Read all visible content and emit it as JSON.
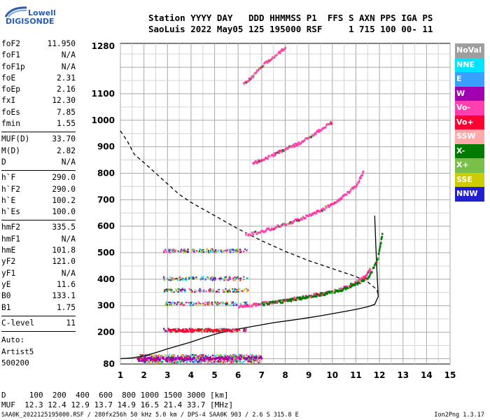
{
  "logo": {
    "line1": "Lowell",
    "line2": "DIGISONDE"
  },
  "header": {
    "line1": "Station YYYY DAY   DDD HHMMSS P1  FFS S AXN PPS IGA PS",
    "line2": "SaoLuis 2022 May05 125 195000 RSF     1 715 100 00- 11"
  },
  "params_groups": [
    [
      [
        "foF2",
        "11.950"
      ],
      [
        "foF1",
        "N/A"
      ],
      [
        "foF1p",
        "N/A"
      ],
      [
        "foE",
        "2.31"
      ],
      [
        "foEp",
        "2.16"
      ],
      [
        "fxI",
        "12.30"
      ],
      [
        "foEs",
        "7.85"
      ],
      [
        "fmin",
        "1.55"
      ]
    ],
    [
      [
        "MUF(D)",
        "33.70"
      ],
      [
        "M(D)",
        "2.82"
      ],
      [
        "D",
        "N/A"
      ]
    ],
    [
      [
        "h`F",
        "290.0"
      ],
      [
        "h`F2",
        "290.0"
      ],
      [
        "h`E",
        "100.2"
      ],
      [
        "h`Es",
        "100.0"
      ]
    ],
    [
      [
        "hmF2",
        "335.5"
      ],
      [
        "hmF1",
        "N/A"
      ],
      [
        "hmE",
        "101.8"
      ],
      [
        "yF2",
        "121.0"
      ],
      [
        "yF1",
        "N/A"
      ],
      [
        "yE",
        "11.6"
      ],
      [
        "B0",
        "133.1"
      ],
      [
        "B1",
        "1.75"
      ]
    ],
    [
      [
        "C-level",
        "11"
      ]
    ]
  ],
  "auto": {
    "l1": "Auto:",
    "l2": "Artist5",
    "l3": "500200"
  },
  "footer": {
    "line1": "D     100  200  400  600  800 1000 1500 3000 [km]",
    "line2": "MUF  12.3 12.4 12.9 13.7 14.9 16.5 21.4 33.7 [MHz]"
  },
  "fileline": "SAA0K_2022125195000.RSF / 280fx256h 50 kHz 5.0 km / DPS-4 SAA0K 903 / 2.6 S 315.8 E",
  "version": "Ion2Png 1.3.17",
  "legend": [
    {
      "label": "NoVal",
      "color": "#9e9e9e"
    },
    {
      "label": "NNE",
      "color": "#00e5ff"
    },
    {
      "label": "E",
      "color": "#3aa0ff"
    },
    {
      "label": "W",
      "color": "#a000b0"
    },
    {
      "label": "Vo-",
      "color": "#ff3fb0"
    },
    {
      "label": "Vo+",
      "color": "#ff0033"
    },
    {
      "label": "SSW",
      "color": "#ffaaaa"
    },
    {
      "label": "X-",
      "color": "#007a00"
    },
    {
      "label": "X+",
      "color": "#79c04a"
    },
    {
      "label": "SSE",
      "color": "#cccc00"
    },
    {
      "label": "NNW",
      "color": "#2020d0"
    }
  ],
  "chart_data": {
    "type": "scatter",
    "xlabel": "",
    "ylabel": "",
    "xlim": [
      1,
      15
    ],
    "ylim": [
      80,
      1290
    ],
    "x_ticks": [
      1,
      2,
      3,
      4,
      5,
      6,
      7,
      8,
      9,
      10,
      11,
      12,
      13,
      14,
      15
    ],
    "y_ticks": [
      80,
      200,
      300,
      400,
      500,
      600,
      700,
      800,
      900,
      1000,
      1100,
      1280
    ],
    "series": [
      {
        "kind": "profile-solid",
        "color": "#000000",
        "x": [
          1.0,
          1.5,
          2.0,
          2.5,
          3.0,
          3.5,
          4.0,
          4.5,
          5.0,
          5.5,
          6.0,
          6.5,
          7.0,
          7.5,
          8.0,
          8.5,
          9.0,
          9.5,
          10.0,
          10.5,
          11.0,
          11.5,
          11.8,
          11.95,
          11.9,
          11.85,
          11.8
        ],
        "y": [
          100,
          103,
          110,
          123,
          137,
          150,
          163,
          178,
          192,
          203,
          212,
          220,
          228,
          236,
          242,
          248,
          255,
          262,
          270,
          278,
          286,
          296,
          305,
          335,
          420,
          520,
          640
        ]
      },
      {
        "kind": "mufcurve-dashed",
        "color": "#000000",
        "x": [
          1.0,
          1.3,
          1.6,
          2.0,
          2.5,
          3.0,
          3.5,
          4.0,
          5.0,
          6.0,
          7.0,
          8.0,
          9.0,
          10.0,
          11.0,
          11.5,
          11.9,
          11.95
        ],
        "y": [
          960,
          920,
          870,
          840,
          800,
          760,
          720,
          690,
          640,
          590,
          545,
          505,
          470,
          440,
          410,
          390,
          360,
          335
        ]
      },
      {
        "kind": "trace-o",
        "color": "#ff3fb0",
        "x": [
          6.0,
          6.5,
          7.0,
          7.5,
          8.0,
          8.5,
          9.0,
          9.5,
          10.0,
          10.5,
          11.0,
          11.3,
          11.6
        ],
        "y": [
          300,
          305,
          312,
          318,
          325,
          332,
          340,
          348,
          358,
          372,
          392,
          410,
          445
        ]
      },
      {
        "kind": "trace-x",
        "color": "#007a00",
        "x": [
          7.0,
          7.5,
          8.0,
          8.5,
          9.0,
          9.5,
          10.0,
          10.5,
          11.0,
          11.5,
          11.9,
          12.1
        ],
        "y": [
          310,
          316,
          322,
          330,
          338,
          346,
          356,
          368,
          385,
          410,
          480,
          580
        ]
      },
      {
        "kind": "trace-es",
        "color": "#ff0033",
        "x": [
          3.0,
          3.5,
          4.0,
          4.5,
          5.0,
          5.5,
          6.0
        ],
        "y": [
          210,
          210,
          210,
          210,
          210,
          210,
          210
        ]
      },
      {
        "kind": "trace-e",
        "color": "#a000b0",
        "x": [
          1.7,
          2.0,
          2.5,
          3.0,
          3.5,
          4.0,
          4.5,
          5.0,
          5.5,
          6.0,
          6.5,
          7.0
        ],
        "y": [
          100,
          102,
          103,
          104,
          104,
          104,
          105,
          105,
          106,
          106,
          107,
          108
        ]
      },
      {
        "kind": "trace-2hop",
        "color": "#ff3fb0",
        "x": [
          6.3,
          7.0,
          7.5,
          8.0,
          8.5,
          9.0,
          9.5,
          10.0,
          10.5,
          11.0,
          11.3
        ],
        "y": [
          570,
          585,
          598,
          612,
          628,
          645,
          665,
          690,
          720,
          760,
          810
        ]
      },
      {
        "kind": "trace-3hop",
        "color": "#ff3fb0",
        "x": [
          6.6,
          7.0,
          7.5,
          8.0,
          8.5,
          9.0,
          9.5,
          10.0
        ],
        "y": [
          840,
          855,
          875,
          895,
          915,
          940,
          970,
          1000
        ]
      },
      {
        "kind": "trace-4hop",
        "color": "#ff3fb0",
        "x": [
          6.2,
          6.6,
          7.0,
          7.5,
          8.0
        ],
        "y": [
          1140,
          1170,
          1210,
          1245,
          1280
        ]
      }
    ]
  }
}
